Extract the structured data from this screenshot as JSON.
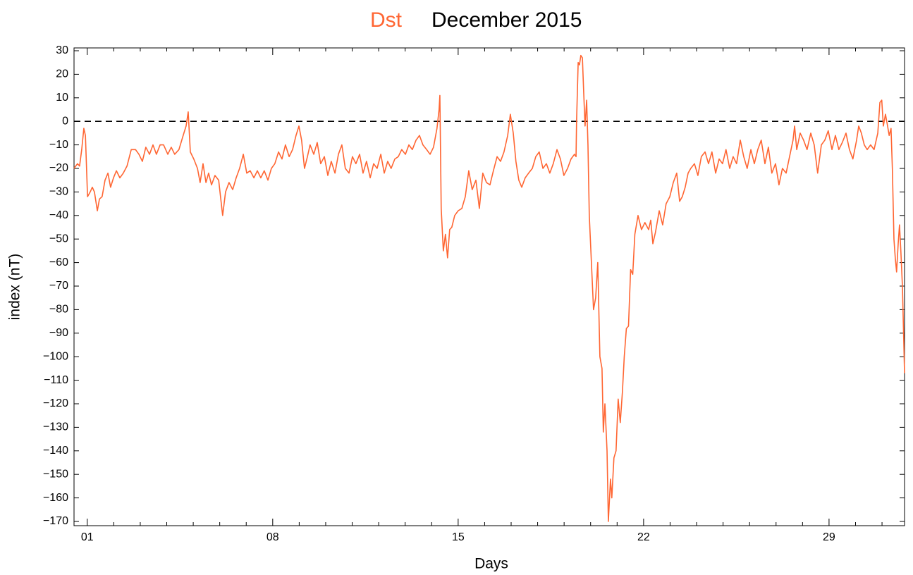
{
  "chart_data": {
    "type": "line",
    "title": "December 2015",
    "xlabel": "Days",
    "ylabel": "index (nT)",
    "x": [
      1.0,
      1.13,
      1.21,
      1.29,
      1.37,
      1.43,
      1.51,
      1.61,
      1.69,
      1.77,
      1.88,
      1.96,
      2.06,
      2.17,
      2.28,
      2.38,
      2.49,
      2.6,
      2.73,
      2.86,
      3.0,
      3.16,
      3.32,
      3.45,
      3.58,
      3.71,
      3.85,
      3.98,
      4.11,
      4.25,
      4.38,
      4.54,
      4.67,
      4.8,
      4.96,
      5.12,
      5.23,
      5.31,
      5.39,
      5.52,
      5.66,
      5.76,
      5.87,
      5.98,
      6.08,
      6.19,
      6.32,
      6.46,
      6.53,
      6.61,
      6.72,
      6.85,
      6.99,
      7.12,
      7.25,
      7.39,
      7.52,
      7.65,
      7.79,
      7.92,
      8.05,
      8.18,
      8.32,
      8.45,
      8.58,
      8.72,
      8.85,
      8.98,
      9.12,
      9.25,
      9.38,
      9.49,
      9.59,
      9.7,
      9.81,
      9.91,
      10.05,
      10.18,
      10.31,
      10.45,
      10.58,
      10.71,
      10.85,
      10.98,
      11.11,
      11.24,
      11.38,
      11.51,
      11.64,
      11.78,
      11.91,
      12.04,
      12.18,
      12.31,
      12.44,
      12.58,
      12.71,
      12.84,
      12.97,
      13.11,
      13.24,
      13.37,
      13.51,
      13.64,
      13.77,
      13.91,
      14.04,
      14.17,
      14.31,
      14.44,
      14.57,
      14.7,
      14.78,
      14.81,
      14.86,
      14.94,
      15.02,
      15.1,
      15.18,
      15.26,
      15.37,
      15.5,
      15.64,
      15.77,
      15.9,
      16.03,
      16.17,
      16.3,
      16.43,
      16.57,
      16.7,
      16.83,
      16.97,
      17.1,
      17.23,
      17.37,
      17.47,
      17.58,
      17.68,
      17.79,
      17.9,
      18.03,
      18.16,
      18.3,
      18.43,
      18.56,
      18.7,
      18.83,
      18.96,
      19.09,
      19.23,
      19.36,
      19.49,
      19.63,
      19.76,
      19.89,
      19.95,
      19.97,
      20.03,
      20.08,
      20.13,
      20.19,
      20.24,
      20.29,
      20.35,
      20.4,
      20.45,
      20.53,
      20.61,
      20.69,
      20.77,
      20.85,
      20.93,
      20.98,
      21.04,
      21.12,
      21.17,
      21.25,
      21.3,
      21.38,
      21.46,
      21.54,
      21.62,
      21.7,
      21.77,
      21.85,
      21.93,
      22.01,
      22.09,
      22.17,
      22.29,
      22.42,
      22.55,
      22.69,
      22.77,
      22.85,
      22.95,
      23.09,
      23.22,
      23.35,
      23.49,
      23.62,
      23.75,
      23.86,
      23.96,
      24.07,
      24.18,
      24.28,
      24.42,
      24.55,
      24.68,
      24.82,
      24.95,
      25.08,
      25.22,
      25.35,
      25.48,
      25.61,
      25.75,
      25.88,
      26.01,
      26.15,
      26.28,
      26.41,
      26.55,
      26.68,
      26.81,
      26.94,
      27.08,
      27.21,
      27.34,
      27.48,
      27.61,
      27.74,
      27.88,
      28.01,
      28.14,
      28.2,
      28.28,
      28.41,
      28.54,
      28.67,
      28.81,
      28.94,
      29.07,
      29.21,
      29.34,
      29.47,
      29.61,
      29.74,
      29.87,
      30.0,
      30.14,
      30.27,
      30.4,
      30.54,
      30.62,
      30.72,
      30.83,
      30.94,
      31.07,
      31.2,
      31.34,
      31.42,
      31.49,
      31.55,
      31.63,
      31.71,
      31.77,
      31.84,
      31.89,
      31.95,
      32.0,
      32.05,
      32.11,
      32.16,
      32.21,
      32.27,
      32.35
    ],
    "series": [
      {
        "name": "Dst",
        "color": "#ff6633",
        "values": [
          -20,
          -18,
          -19,
          -12,
          -3,
          -6,
          -32,
          -30,
          -28,
          -30,
          -38,
          -33,
          -32,
          -25,
          -22,
          -28,
          -24,
          -21,
          -24,
          -22,
          -19,
          -12,
          -12,
          -14,
          -17,
          -11,
          -14,
          -10,
          -14,
          -10,
          -10,
          -14,
          -11,
          -14,
          -12,
          -6,
          -2,
          4,
          -13,
          -16,
          -20,
          -26,
          -18,
          -26,
          -22,
          -27,
          -23,
          -25,
          -32,
          -40,
          -30,
          -26,
          -29,
          -24,
          -20,
          -14,
          -22,
          -21,
          -24,
          -21,
          -24,
          -21,
          -25,
          -20,
          -18,
          -13,
          -16,
          -10,
          -15,
          -12,
          -6,
          -2,
          -8,
          -20,
          -15,
          -10,
          -14,
          -9,
          -18,
          -15,
          -23,
          -17,
          -22,
          -14,
          -10,
          -20,
          -22,
          -15,
          -18,
          -14,
          -22,
          -17,
          -24,
          -18,
          -20,
          -14,
          -22,
          -17,
          -20,
          -16,
          -15,
          -12,
          -14,
          -10,
          -12,
          -8,
          -6,
          -10,
          -12,
          -14,
          -11,
          -3,
          5,
          11,
          -37,
          -55,
          -48,
          -58,
          -46,
          -45,
          -40,
          -38,
          -37,
          -32,
          -21,
          -29,
          -25,
          -37,
          -22,
          -26,
          -27,
          -21,
          -15,
          -17,
          -13,
          -6,
          3,
          -5,
          -17,
          -25,
          -28,
          -24,
          -22,
          -20,
          -15,
          -13,
          -20,
          -18,
          -22,
          -18,
          -12,
          -16,
          -23,
          -20,
          -16,
          -14,
          -15,
          0,
          25,
          24,
          28,
          27,
          12,
          -2,
          9,
          -10,
          -40,
          -60,
          -80,
          -75,
          -60,
          -100,
          -105,
          -132,
          -120,
          -140,
          -170,
          -152,
          -160,
          -143,
          -140,
          -118,
          -128,
          -115,
          -100,
          -88,
          -87,
          -63,
          -65,
          -48,
          -40,
          -46,
          -43,
          -46,
          -42,
          -52,
          -47,
          -38,
          -44,
          -35,
          -32,
          -26,
          -22,
          -34,
          -32,
          -28,
          -22,
          -20,
          -18,
          -23,
          -15,
          -13,
          -18,
          -13,
          -22,
          -16,
          -18,
          -12,
          -20,
          -15,
          -18,
          -8,
          -15,
          -20,
          -12,
          -18,
          -12,
          -8,
          -18,
          -11,
          -22,
          -18,
          -27,
          -20,
          -22,
          -15,
          -8,
          -2,
          -12,
          -5,
          -8,
          -12,
          -5,
          -10,
          -22,
          -10,
          -8,
          -4,
          -12,
          -6,
          -12,
          -9,
          -5,
          -12,
          -16,
          -8,
          -2,
          -5,
          -10,
          -12,
          -10,
          -12,
          -5,
          8,
          9,
          -2,
          3,
          -2,
          -6,
          -3,
          -20,
          -50,
          -58,
          -64,
          -52,
          -44,
          -55,
          -70,
          -107
        ]
      }
    ],
    "xlim": [
      1,
      32.35
    ],
    "xticks": [
      {
        "value": 1.5,
        "label": "01"
      },
      {
        "value": 8.5,
        "label": "08"
      },
      {
        "value": 15.5,
        "label": "15"
      },
      {
        "value": 22.5,
        "label": "22"
      },
      {
        "value": 29.5,
        "label": "29"
      }
    ],
    "xminorticks": [
      2.5,
      3.5,
      4.5,
      5.5,
      6.5,
      7.5,
      9.5,
      10.5,
      11.5,
      12.5,
      13.5,
      14.5,
      16.5,
      17.5,
      18.5,
      19.5,
      20.5,
      21.5,
      23.5,
      24.5,
      25.5,
      26.5,
      27.5,
      28.5,
      30.5,
      31.5
    ],
    "ylim": [
      -171.8,
      31.2
    ],
    "yticks": [
      30,
      20,
      10,
      0,
      {
        "value": -10,
        "label": "−10"
      },
      {
        "value": -20,
        "label": "−20"
      },
      {
        "value": -30,
        "label": "−30"
      },
      {
        "value": -40,
        "label": "−40"
      },
      {
        "value": -50,
        "label": "−50"
      },
      {
        "value": -60,
        "label": "−60"
      },
      {
        "value": -70,
        "label": "−70"
      },
      {
        "value": -80,
        "label": "−80"
      },
      {
        "value": -90,
        "label": "−90"
      },
      {
        "value": -100,
        "label": "−100"
      },
      {
        "value": -110,
        "label": "−110"
      },
      {
        "value": -120,
        "label": "−120"
      },
      {
        "value": -130,
        "label": "−130"
      },
      {
        "value": -140,
        "label": "−140"
      },
      {
        "value": -150,
        "label": "−150"
      },
      {
        "value": -160,
        "label": "−160"
      },
      {
        "value": -170,
        "label": "−170"
      }
    ],
    "hline": 0
  }
}
